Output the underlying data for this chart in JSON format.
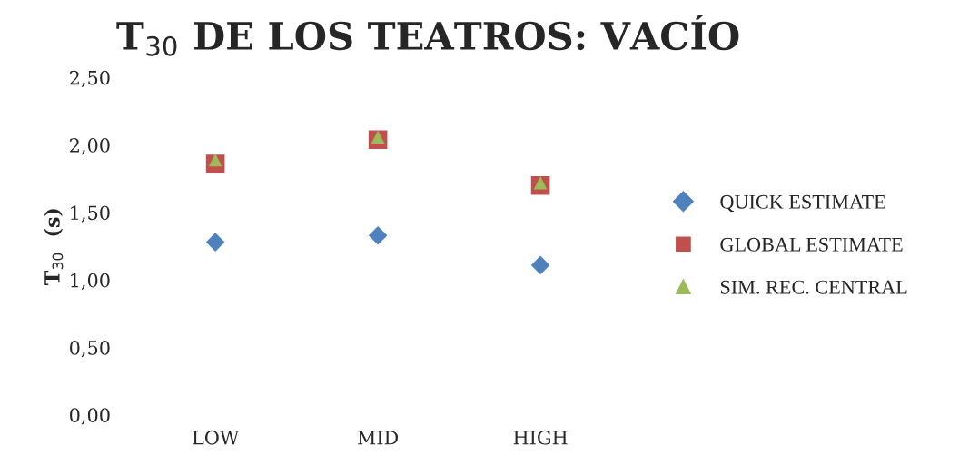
{
  "chart_data": {
    "type": "scatter",
    "title": "T$_{30}$ DE LOS TEATROS: VACÍO",
    "ylabel": "T$_{30}$  (s)",
    "categories": [
      "LOW",
      "MID",
      "HIGH"
    ],
    "series": [
      {
        "name": "QUICK ESTIMATE",
        "color": "#4f81bd",
        "marker": "diamond",
        "values": [
          1.28,
          1.33,
          1.11
        ]
      },
      {
        "name": "GLOBAL ESTIMATE",
        "color": "#c0504d",
        "marker": "square",
        "values": [
          1.86,
          2.04,
          1.7
        ]
      },
      {
        "name": "SIM. REC. CENTRAL",
        "color": "#9bbb59",
        "marker": "triangle",
        "values": [
          1.89,
          2.06,
          1.72
        ]
      }
    ],
    "ylim": [
      0,
      2.5
    ],
    "yticks": [
      {
        "value": 0,
        "label": "0,00"
      },
      {
        "value": 0.5,
        "label": "0,50"
      },
      {
        "value": 1,
        "label": "1,00"
      },
      {
        "value": 1.5,
        "label": "1,50"
      },
      {
        "value": 2,
        "label": "2,00"
      },
      {
        "value": 2.5,
        "label": "2,50"
      }
    ],
    "grid": false,
    "legend": "right"
  }
}
